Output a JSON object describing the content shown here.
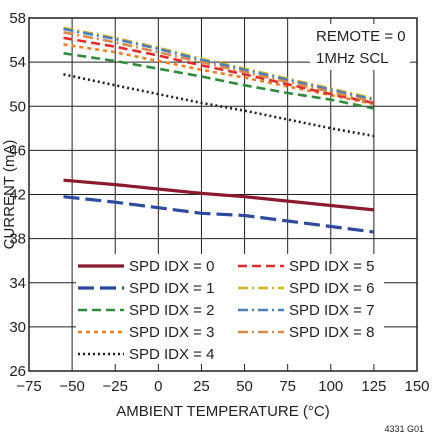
{
  "chart_data": {
    "type": "line",
    "xlabel": "AMBIENT TEMPERATURE (°C)",
    "ylabel": "CURRENT (mA)",
    "xlim": [
      -75,
      150
    ],
    "ylim": [
      26,
      58
    ],
    "x_ticks": [
      -75,
      -50,
      -25,
      0,
      25,
      50,
      75,
      100,
      125,
      150
    ],
    "y_ticks": [
      26,
      30,
      34,
      38,
      42,
      46,
      50,
      54,
      58
    ],
    "grid": true,
    "annotations": [
      "REMOTE = 0",
      "1MHz SCL"
    ],
    "figure_id": "4331 G01",
    "legend_position": "bottom-left",
    "series": [
      {
        "name": "SPD IDX = 0",
        "color": "#8b1a2f",
        "dash": "solid",
        "x": [
          -55,
          -25,
          0,
          25,
          50,
          75,
          100,
          125
        ],
        "y": [
          43.3,
          42.9,
          42.5,
          42.1,
          41.8,
          41.4,
          41.0,
          40.6
        ]
      },
      {
        "name": "SPD IDX = 1",
        "color": "#2e4a9c",
        "dash": "long",
        "x": [
          -55,
          -25,
          0,
          25,
          50,
          75,
          100,
          125
        ],
        "y": [
          41.8,
          41.3,
          40.8,
          40.3,
          40.1,
          39.6,
          39.1,
          38.6
        ]
      },
      {
        "name": "SPD IDX = 2",
        "color": "#2e8b3a",
        "dash": "dash",
        "x": [
          -55,
          -25,
          0,
          25,
          50,
          75,
          100,
          125
        ],
        "y": [
          54.8,
          54.1,
          53.4,
          52.7,
          51.9,
          51.2,
          50.6,
          49.8
        ]
      },
      {
        "name": "SPD IDX = 3",
        "color": "#ef7d22",
        "dash": "dot",
        "x": [
          -55,
          -25,
          0,
          25,
          50,
          75,
          100,
          125
        ],
        "y": [
          55.6,
          54.9,
          54.1,
          53.3,
          52.6,
          51.8,
          51.0,
          50.2
        ]
      },
      {
        "name": "SPD IDX = 4",
        "color": "#231f20",
        "dash": "fine",
        "x": [
          -55,
          -25,
          0,
          25,
          50,
          75,
          100,
          125
        ],
        "y": [
          52.9,
          51.9,
          51.1,
          50.3,
          49.6,
          48.8,
          48.0,
          47.3
        ]
      },
      {
        "name": "SPD IDX = 5",
        "color": "#e02b2b",
        "dash": "dash",
        "x": [
          -55,
          -25,
          0,
          25,
          50,
          75,
          100,
          125
        ],
        "y": [
          56.2,
          55.4,
          54.6,
          53.7,
          52.9,
          52.0,
          51.1,
          50.3
        ]
      },
      {
        "name": "SPD IDX = 6",
        "color": "#d4b21c",
        "dash": "dashdot",
        "x": [
          -55,
          -25,
          0,
          25,
          50,
          75,
          100,
          125
        ],
        "y": [
          57.1,
          56.2,
          55.3,
          54.3,
          53.4,
          52.5,
          51.6,
          50.7
        ]
      },
      {
        "name": "SPD IDX = 7",
        "color": "#4a7fc0",
        "dash": "dashdot",
        "x": [
          -55,
          -25,
          0,
          25,
          50,
          75,
          100,
          125
        ],
        "y": [
          57.0,
          56.1,
          55.2,
          54.2,
          53.3,
          52.4,
          51.5,
          50.6
        ]
      },
      {
        "name": "SPD IDX = 8",
        "color": "#d98a4a",
        "dash": "dashdot",
        "x": [
          -55,
          -25,
          0,
          25,
          50,
          75,
          100,
          125
        ],
        "y": [
          56.7,
          55.8,
          54.9,
          54.0,
          53.1,
          52.2,
          51.3,
          50.4
        ]
      }
    ]
  }
}
